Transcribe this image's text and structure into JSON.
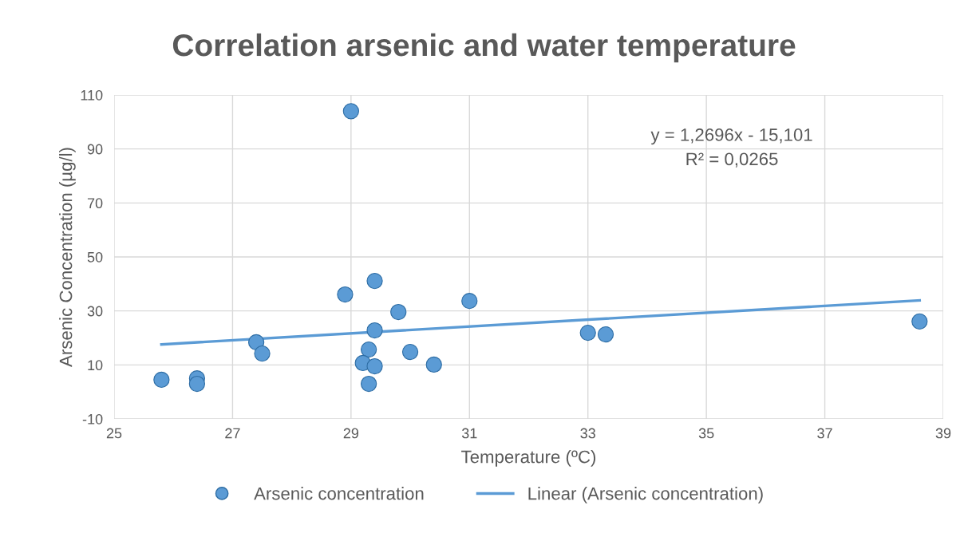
{
  "chart_data": {
    "type": "scatter",
    "title": "Correlation arsenic and water temperature",
    "xlabel": "Temperature (ºC)",
    "ylabel": "Arsenic Concentration (µg/l)",
    "x": [
      25.8,
      26.4,
      26.4,
      27.4,
      27.5,
      29.0,
      28.9,
      29.4,
      29.4,
      29.3,
      29.2,
      29.4,
      29.3,
      29.8,
      30.0,
      30.4,
      31.0,
      33.0,
      33.3,
      38.6
    ],
    "series": [
      {
        "name": "Arsenic concentration",
        "color": "#5b9bd5",
        "marker": "circle",
        "values": [
          4.5,
          5,
          3,
          18.4,
          14.2,
          104,
          36.1,
          41.1,
          22.8,
          15.7,
          10.7,
          9.5,
          3,
          29.6,
          14.8,
          10.1,
          33.7,
          21.9,
          21.3,
          26.1
        ]
      },
      {
        "name": "Linear (Arsenic concentration)",
        "type": "line",
        "color": "#5b9bd5",
        "line_style": "solid",
        "x": [
          25.8,
          38.6
        ],
        "values": [
          17.6,
          33.9
        ]
      }
    ],
    "annotations": [
      "y = 1,2696x - 15,101\nR² = 0,0265"
    ],
    "xlim": [
      25,
      39
    ],
    "xticks": [
      25,
      27,
      29,
      31,
      33,
      35,
      37,
      39
    ],
    "ylim": [
      -10,
      110
    ],
    "yticks": [
      -10,
      10,
      30,
      50,
      70,
      90,
      110
    ],
    "grid": true,
    "legend": "bottom"
  }
}
